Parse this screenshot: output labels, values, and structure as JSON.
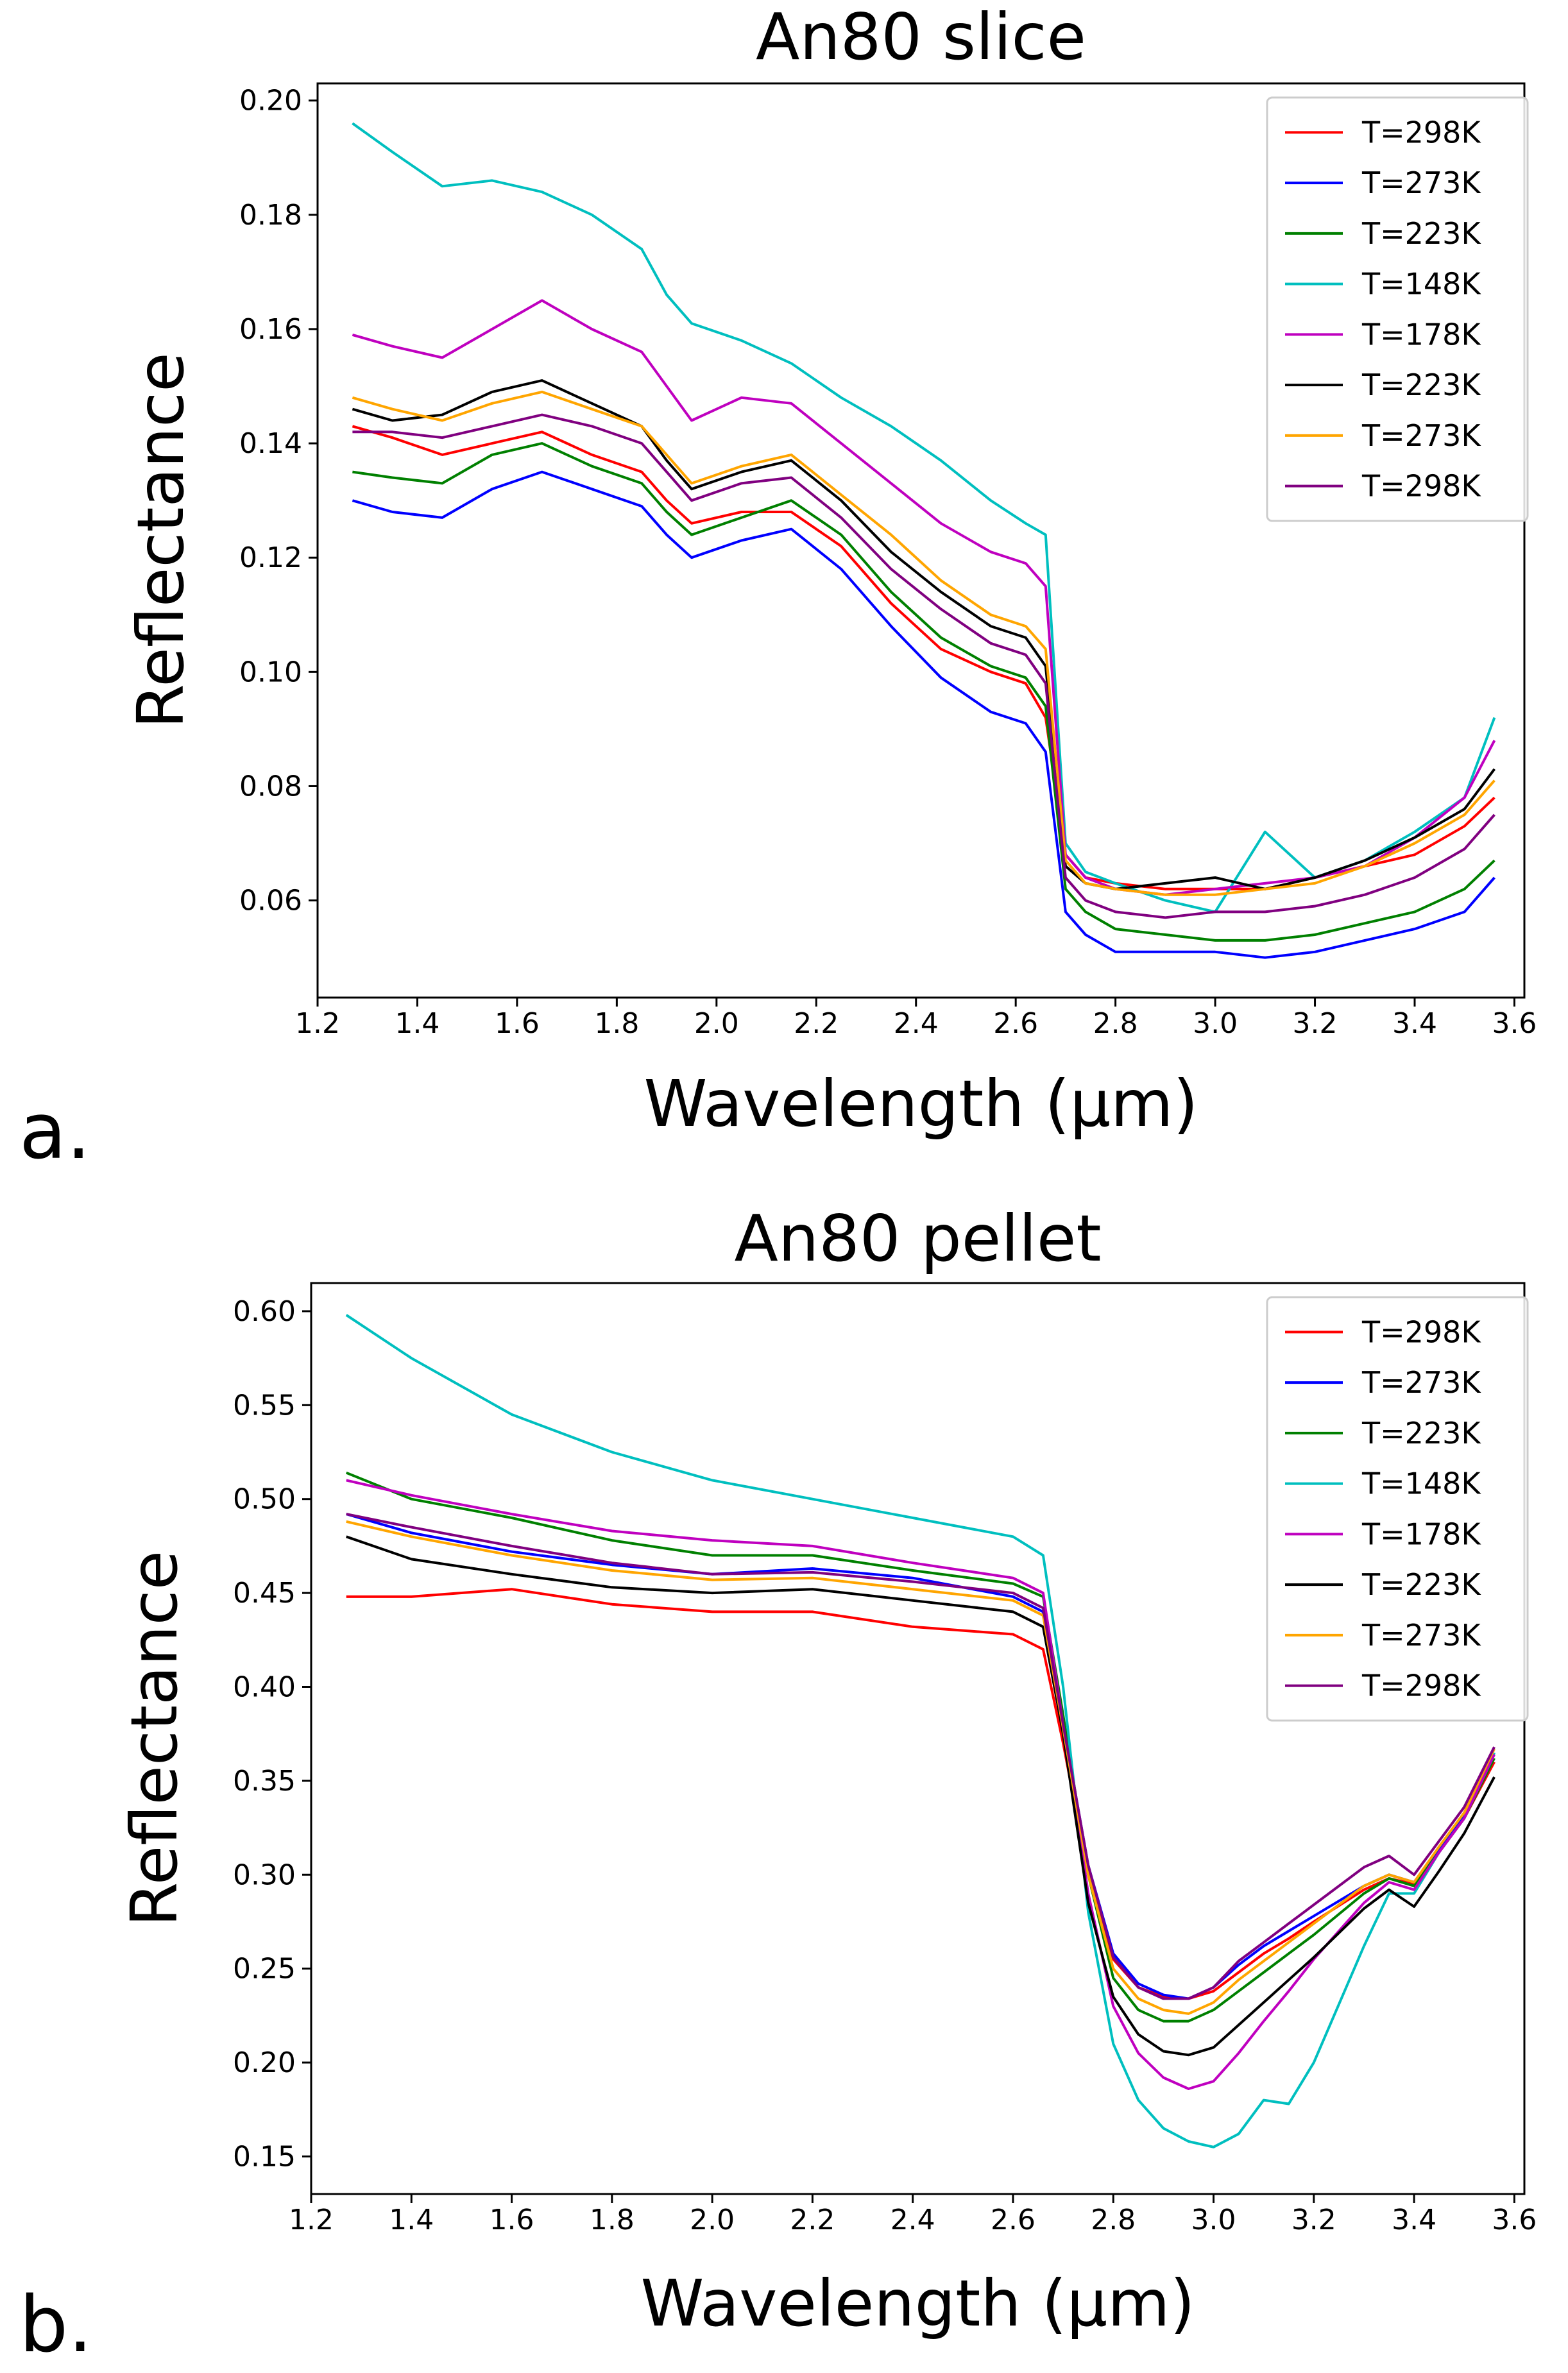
{
  "chart_data": [
    {
      "type": "line",
      "panel": "a.",
      "title": "An80 slice",
      "xlabel": "Wavelength (μm)",
      "ylabel": "Reflectance",
      "xlim": [
        1.2,
        3.62
      ],
      "ylim": [
        0.043,
        0.203
      ],
      "xticks": [
        "1.2",
        "1.4",
        "1.6",
        "1.8",
        "2.0",
        "2.2",
        "2.4",
        "2.6",
        "2.8",
        "3.0",
        "3.2",
        "3.4",
        "3.6"
      ],
      "yticks": [
        "0.06",
        "0.08",
        "0.10",
        "0.12",
        "0.14",
        "0.16",
        "0.18",
        "0.20"
      ],
      "legend_position": "top-right",
      "x": [
        1.27,
        1.35,
        1.45,
        1.55,
        1.65,
        1.75,
        1.85,
        1.9,
        1.95,
        2.05,
        2.15,
        2.25,
        2.35,
        2.45,
        2.55,
        2.62,
        2.66,
        2.7,
        2.74,
        2.8,
        2.9,
        3.0,
        3.1,
        3.2,
        3.3,
        3.4,
        3.5,
        3.56
      ],
      "series": [
        {
          "name": "T=298K",
          "color": "#ff0000",
          "values": [
            0.143,
            0.141,
            0.138,
            0.14,
            0.142,
            0.138,
            0.135,
            0.13,
            0.126,
            0.128,
            0.128,
            0.122,
            0.112,
            0.104,
            0.1,
            0.098,
            0.092,
            0.068,
            0.064,
            0.063,
            0.062,
            0.062,
            0.062,
            0.064,
            0.066,
            0.068,
            0.073,
            0.078
          ]
        },
        {
          "name": "T=273K",
          "color": "#0000ff",
          "values": [
            0.13,
            0.128,
            0.127,
            0.132,
            0.135,
            0.132,
            0.129,
            0.124,
            0.12,
            0.123,
            0.125,
            0.118,
            0.108,
            0.099,
            0.093,
            0.091,
            0.086,
            0.058,
            0.054,
            0.051,
            0.051,
            0.051,
            0.05,
            0.051,
            0.053,
            0.055,
            0.058,
            0.064
          ]
        },
        {
          "name": "T=223K",
          "color": "#008000",
          "values": [
            0.135,
            0.134,
            0.133,
            0.138,
            0.14,
            0.136,
            0.133,
            0.128,
            0.124,
            0.127,
            0.13,
            0.124,
            0.114,
            0.106,
            0.101,
            0.099,
            0.094,
            0.062,
            0.058,
            0.055,
            0.054,
            0.053,
            0.053,
            0.054,
            0.056,
            0.058,
            0.062,
            0.067
          ]
        },
        {
          "name": "T=148K",
          "color": "#00bfbf",
          "values": [
            0.196,
            0.191,
            0.185,
            0.186,
            0.184,
            0.18,
            0.174,
            0.166,
            0.161,
            0.158,
            0.154,
            0.148,
            0.143,
            0.137,
            0.13,
            0.126,
            0.124,
            0.07,
            0.065,
            0.063,
            0.06,
            0.058,
            0.072,
            0.064,
            0.067,
            0.072,
            0.078,
            0.092
          ]
        },
        {
          "name": "T=178K",
          "color": "#bf00bf",
          "values": [
            0.159,
            0.157,
            0.155,
            0.16,
            0.165,
            0.16,
            0.156,
            0.15,
            0.144,
            0.148,
            0.147,
            0.14,
            0.133,
            0.126,
            0.121,
            0.119,
            0.115,
            0.068,
            0.064,
            0.062,
            0.061,
            0.062,
            0.063,
            0.064,
            0.066,
            0.071,
            0.078,
            0.088
          ]
        },
        {
          "name": "T=223K",
          "color": "#000000",
          "values": [
            0.146,
            0.144,
            0.145,
            0.149,
            0.151,
            0.147,
            0.143,
            0.137,
            0.132,
            0.135,
            0.137,
            0.13,
            0.121,
            0.114,
            0.108,
            0.106,
            0.101,
            0.066,
            0.063,
            0.062,
            0.063,
            0.064,
            0.062,
            0.064,
            0.067,
            0.071,
            0.076,
            0.083
          ]
        },
        {
          "name": "T=273K",
          "color": "#ffa500",
          "values": [
            0.148,
            0.146,
            0.144,
            0.147,
            0.149,
            0.146,
            0.143,
            0.138,
            0.133,
            0.136,
            0.138,
            0.131,
            0.124,
            0.116,
            0.11,
            0.108,
            0.104,
            0.067,
            0.063,
            0.062,
            0.061,
            0.061,
            0.062,
            0.063,
            0.066,
            0.07,
            0.075,
            0.081
          ]
        },
        {
          "name": "T=298K",
          "color": "#800080",
          "values": [
            0.142,
            0.142,
            0.141,
            0.143,
            0.145,
            0.143,
            0.14,
            0.135,
            0.13,
            0.133,
            0.134,
            0.127,
            0.118,
            0.111,
            0.105,
            0.103,
            0.098,
            0.064,
            0.06,
            0.058,
            0.057,
            0.058,
            0.058,
            0.059,
            0.061,
            0.064,
            0.069,
            0.075
          ]
        }
      ]
    },
    {
      "type": "line",
      "panel": "b.",
      "title": "An80 pellet",
      "xlabel": "Wavelength (μm)",
      "ylabel": "Reflectance",
      "xlim": [
        1.2,
        3.62
      ],
      "ylim": [
        0.13,
        0.615
      ],
      "xticks": [
        "1.2",
        "1.4",
        "1.6",
        "1.8",
        "2.0",
        "2.2",
        "2.4",
        "2.6",
        "2.8",
        "3.0",
        "3.2",
        "3.4",
        "3.6"
      ],
      "yticks": [
        "0.15",
        "0.20",
        "0.25",
        "0.30",
        "0.35",
        "0.40",
        "0.45",
        "0.50",
        "0.55",
        "0.60"
      ],
      "legend_position": "top-right",
      "x": [
        1.27,
        1.4,
        1.6,
        1.8,
        2.0,
        2.2,
        2.4,
        2.6,
        2.66,
        2.7,
        2.75,
        2.8,
        2.85,
        2.9,
        2.95,
        3.0,
        3.05,
        3.1,
        3.15,
        3.2,
        3.3,
        3.35,
        3.4,
        3.45,
        3.5,
        3.56
      ],
      "series": [
        {
          "name": "T=298K",
          "color": "#ff0000",
          "values": [
            0.448,
            0.448,
            0.452,
            0.444,
            0.44,
            0.44,
            0.432,
            0.428,
            0.42,
            0.37,
            0.3,
            0.255,
            0.24,
            0.235,
            0.234,
            0.238,
            0.248,
            0.258,
            0.266,
            0.275,
            0.292,
            0.298,
            0.295,
            0.312,
            0.33,
            0.36
          ]
        },
        {
          "name": "T=273K",
          "color": "#0000ff",
          "values": [
            0.492,
            0.482,
            0.472,
            0.465,
            0.46,
            0.463,
            0.458,
            0.448,
            0.44,
            0.38,
            0.305,
            0.258,
            0.242,
            0.236,
            0.234,
            0.24,
            0.252,
            0.262,
            0.27,
            0.278,
            0.294,
            0.3,
            0.296,
            0.314,
            0.332,
            0.365
          ]
        },
        {
          "name": "T=223K",
          "color": "#008000",
          "values": [
            0.514,
            0.5,
            0.49,
            0.478,
            0.47,
            0.47,
            0.462,
            0.455,
            0.448,
            0.385,
            0.3,
            0.245,
            0.228,
            0.222,
            0.222,
            0.228,
            0.238,
            0.248,
            0.258,
            0.268,
            0.29,
            0.298,
            0.294,
            0.312,
            0.33,
            0.362
          ]
        },
        {
          "name": "T=148K",
          "color": "#00bfbf",
          "values": [
            0.598,
            0.575,
            0.545,
            0.525,
            0.51,
            0.5,
            0.49,
            0.48,
            0.47,
            0.4,
            0.28,
            0.21,
            0.18,
            0.165,
            0.158,
            0.155,
            0.162,
            0.18,
            0.178,
            0.2,
            0.262,
            0.29,
            0.29,
            0.312,
            0.33,
            0.365
          ]
        },
        {
          "name": "T=178K",
          "color": "#bf00bf",
          "values": [
            0.51,
            0.502,
            0.492,
            0.483,
            0.478,
            0.475,
            0.466,
            0.458,
            0.45,
            0.38,
            0.29,
            0.23,
            0.205,
            0.192,
            0.186,
            0.19,
            0.205,
            0.222,
            0.238,
            0.255,
            0.285,
            0.296,
            0.292,
            0.312,
            0.33,
            0.364
          ]
        },
        {
          "name": "T=223K",
          "color": "#000000",
          "values": [
            0.48,
            0.468,
            0.46,
            0.453,
            0.45,
            0.452,
            0.446,
            0.44,
            0.432,
            0.375,
            0.285,
            0.235,
            0.215,
            0.206,
            0.204,
            0.208,
            0.22,
            0.232,
            0.244,
            0.256,
            0.282,
            0.292,
            0.283,
            0.302,
            0.322,
            0.352
          ]
        },
        {
          "name": "T=273K",
          "color": "#ffa500",
          "values": [
            0.488,
            0.48,
            0.47,
            0.462,
            0.457,
            0.458,
            0.452,
            0.446,
            0.438,
            0.378,
            0.3,
            0.25,
            0.234,
            0.228,
            0.226,
            0.232,
            0.244,
            0.254,
            0.264,
            0.274,
            0.294,
            0.3,
            0.296,
            0.315,
            0.333,
            0.367
          ]
        },
        {
          "name": "T=298K",
          "color": "#800080",
          "values": [
            0.492,
            0.485,
            0.475,
            0.466,
            0.46,
            0.461,
            0.456,
            0.45,
            0.442,
            0.38,
            0.305,
            0.256,
            0.24,
            0.234,
            0.234,
            0.24,
            0.254,
            0.264,
            0.274,
            0.284,
            0.304,
            0.31,
            0.3,
            0.318,
            0.336,
            0.368
          ]
        }
      ]
    }
  ]
}
